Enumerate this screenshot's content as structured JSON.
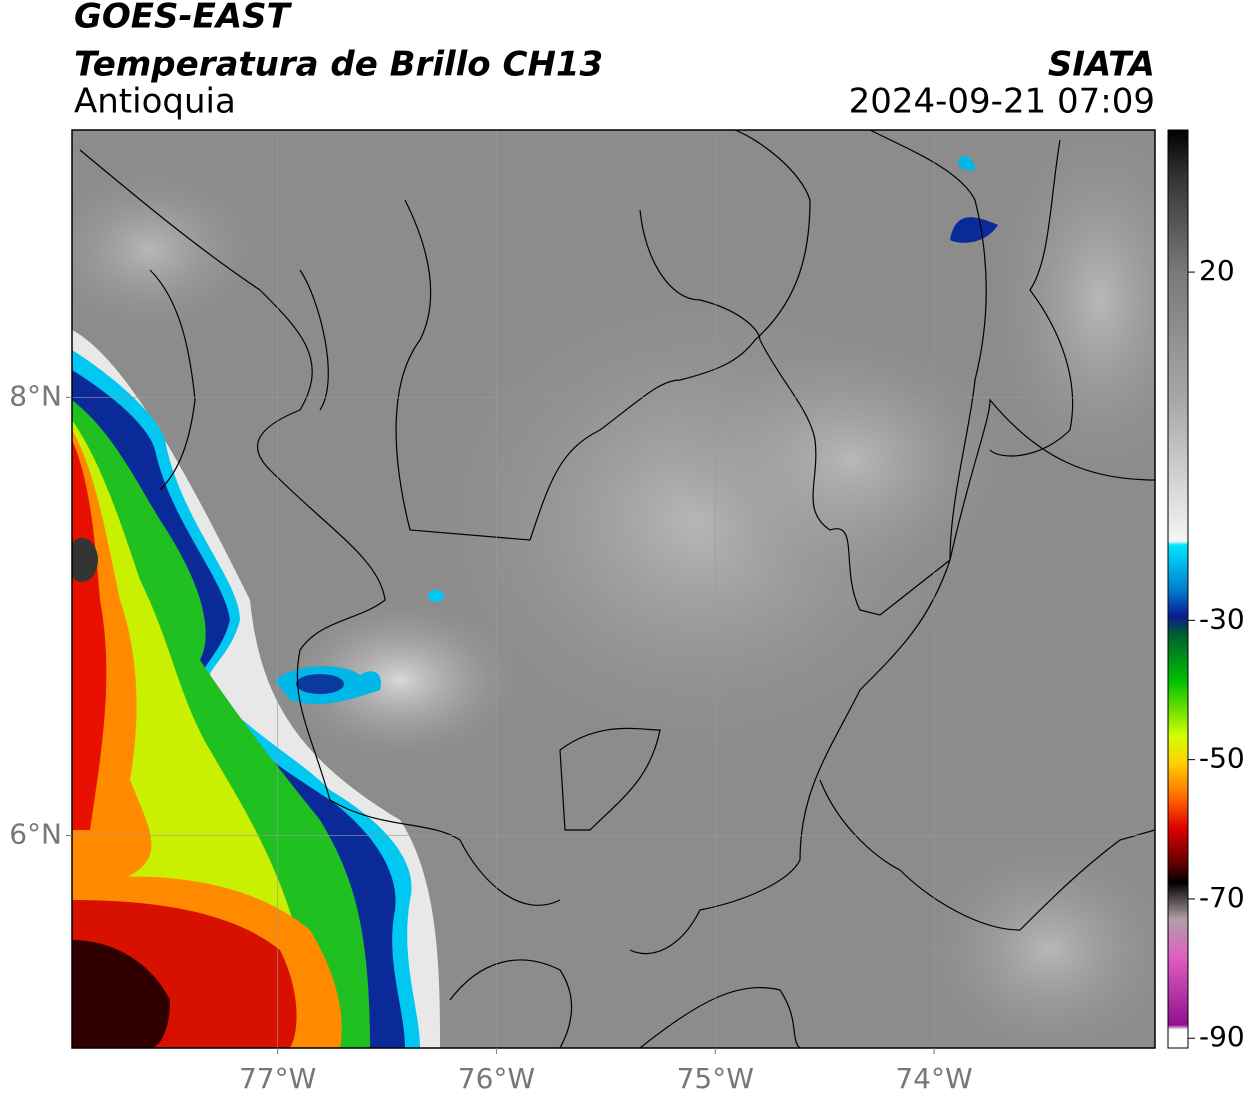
{
  "header": {
    "title": "GOES-EAST",
    "subtitle": "Temperatura de Brillo CH13",
    "region": "Antioquia",
    "source": "SIATA",
    "datetime": "2024-09-21 07:09"
  },
  "map": {
    "xlim": [
      -77.94,
      -72.99
    ],
    "ylim": [
      5.03,
      9.22
    ],
    "xticks": [
      {
        "value": -77,
        "label": "77°W"
      },
      {
        "value": -76,
        "label": "76°W"
      },
      {
        "value": -75,
        "label": "75°W"
      },
      {
        "value": -74,
        "label": "74°W"
      }
    ],
    "yticks": [
      {
        "value": 8,
        "label": "8°N"
      },
      {
        "value": 6,
        "label": "6°N"
      }
    ],
    "grid": true
  },
  "colorbar": {
    "lim": [
      -91.4,
      40.4
    ],
    "ticks": [
      20,
      -30,
      -50,
      -70,
      -90
    ]
  }
}
